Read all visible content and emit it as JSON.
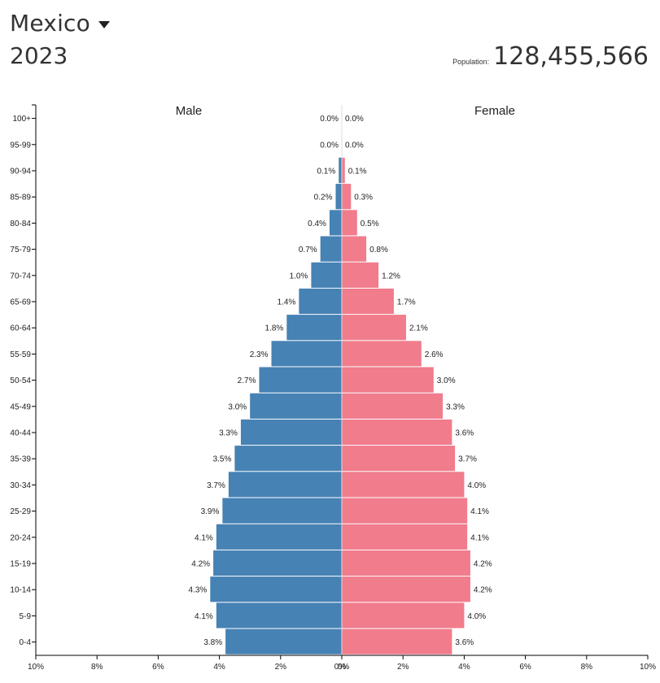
{
  "header": {
    "country": "Mexico",
    "year": "2023",
    "population_label": "Population:",
    "population_value": "128,455,566"
  },
  "colors": {
    "male": "#4682b4",
    "female": "#f07c8c",
    "axis": "#000000"
  },
  "icons": {
    "dropdown": "caret-down-icon"
  },
  "chart_data": {
    "type": "bar",
    "orientation": "horizontal-population-pyramid",
    "series_labels": {
      "male": "Male",
      "female": "Female"
    },
    "categories": [
      "100+",
      "95-99",
      "90-94",
      "85-89",
      "80-84",
      "75-79",
      "70-74",
      "65-69",
      "60-64",
      "55-59",
      "50-54",
      "45-49",
      "40-44",
      "35-39",
      "30-34",
      "25-29",
      "20-24",
      "15-19",
      "10-14",
      "5-9",
      "0-4"
    ],
    "series": [
      {
        "name": "Male",
        "values": [
          0.0,
          0.0,
          0.1,
          0.2,
          0.4,
          0.7,
          1.0,
          1.4,
          1.8,
          2.3,
          2.7,
          3.0,
          3.3,
          3.5,
          3.7,
          3.9,
          4.1,
          4.2,
          4.3,
          4.1,
          3.8
        ]
      },
      {
        "name": "Female",
        "values": [
          0.0,
          0.0,
          0.1,
          0.3,
          0.5,
          0.8,
          1.2,
          1.7,
          2.1,
          2.6,
          3.0,
          3.3,
          3.6,
          3.7,
          4.0,
          4.1,
          4.1,
          4.2,
          4.2,
          4.0,
          3.6
        ]
      }
    ],
    "bar_labels": {
      "male": [
        "0.0%",
        "0.0%",
        "0.1%",
        "0.2%",
        "0.4%",
        "0.7%",
        "1.0%",
        "1.4%",
        "1.8%",
        "2.3%",
        "2.7%",
        "3.0%",
        "3.3%",
        "3.5%",
        "3.7%",
        "3.9%",
        "4.1%",
        "4.2%",
        "4.3%",
        "4.1%",
        "3.8%"
      ],
      "female": [
        "0.0%",
        "0.0%",
        "0.1%",
        "0.3%",
        "0.5%",
        "0.8%",
        "1.2%",
        "1.7%",
        "2.1%",
        "2.6%",
        "3.0%",
        "3.3%",
        "3.6%",
        "3.7%",
        "4.0%",
        "4.1%",
        "4.1%",
        "4.2%",
        "4.2%",
        "4.0%",
        "3.6%"
      ]
    },
    "x_ticks": [
      "10%",
      "8%",
      "6%",
      "4%",
      "2%",
      "0%",
      "0%",
      "2%",
      "4%",
      "6%",
      "8%",
      "10%"
    ],
    "x_tick_values": [
      -10,
      -8,
      -6,
      -4,
      -2,
      0,
      0,
      2,
      4,
      6,
      8,
      10
    ],
    "xlim": [
      -10,
      10
    ],
    "unit": "percent of population",
    "grid": false
  }
}
